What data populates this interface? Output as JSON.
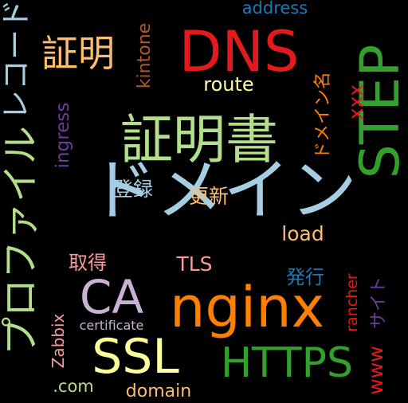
{
  "background": "#000000",
  "words": [
    {
      "text": "ドメイン",
      "color": "#a6cee3"
    },
    {
      "text": "証明書",
      "color": "#b2df8a"
    },
    {
      "text": "DNS",
      "color": "#e31a1c"
    },
    {
      "text": "STEP",
      "color": "#33a02c"
    },
    {
      "text": "nginx",
      "color": "#ff7f00"
    },
    {
      "text": "プロファイル",
      "color": "#b2df8a"
    },
    {
      "text": "HTTPS",
      "color": "#33a02c"
    },
    {
      "text": "SSL",
      "color": "#ffff99"
    },
    {
      "text": "CA",
      "color": "#cab2d6"
    },
    {
      "text": "証明",
      "color": "#fdbf6f"
    },
    {
      "text": "レコード",
      "color": "#a6cee3"
    },
    {
      "text": "route",
      "color": "#ffff99"
    },
    {
      "text": "kintone",
      "color": "#b15928"
    },
    {
      "text": "ドメイン名",
      "color": "#ff7f00"
    },
    {
      "text": "ingress",
      "color": "#6a3d9a"
    },
    {
      "text": "xxx",
      "color": "#e31a1c"
    },
    {
      "text": "load",
      "color": "#fdbf6f"
    },
    {
      "text": "TLS",
      "color": "#fb9a99"
    },
    {
      "text": "登録",
      "color": "#a6cee3"
    },
    {
      "text": "更新",
      "color": "#fdbf6f"
    },
    {
      "text": "取得",
      "color": "#fb9a99"
    },
    {
      "text": "発行",
      "color": "#1f78b4"
    },
    {
      "text": "address",
      "color": "#1f78b4"
    },
    {
      "text": "Zabbix",
      "color": "#fb9a99"
    },
    {
      "text": "certificate",
      "color": "#cab2d6"
    },
    {
      "text": "rancher",
      "color": "#e31a1c"
    },
    {
      "text": "www",
      "color": "#e31a1c"
    },
    {
      "text": "サイト",
      "color": "#6a3d9a"
    },
    {
      "text": "domain",
      "color": "#fdbf6f"
    },
    {
      "text": ".com",
      "color": "#b2df8a"
    }
  ]
}
